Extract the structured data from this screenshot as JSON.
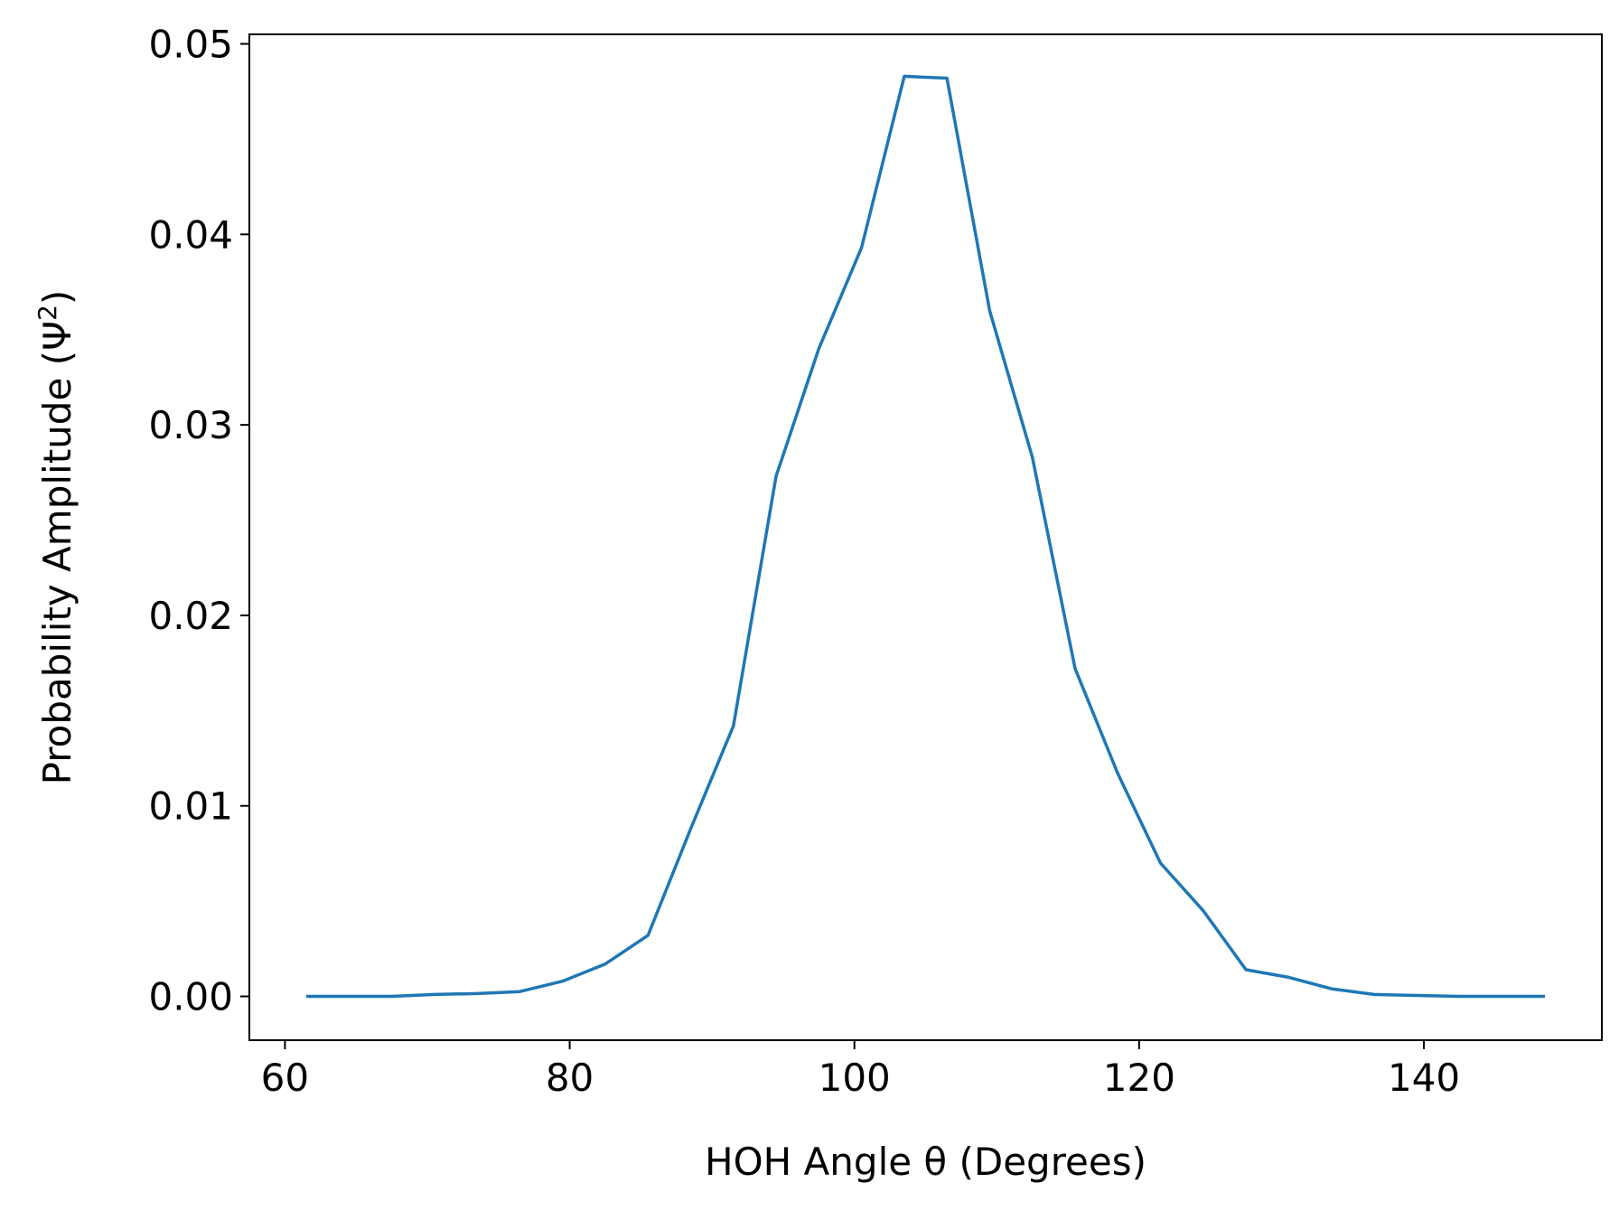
{
  "chart_data": {
    "type": "line",
    "title": "",
    "xlabel": "HOH Angle θ (Degrees)",
    "ylabel": {
      "prefix": "Probability Amplitude (Ψ",
      "superscript": "2",
      "suffix": ")"
    },
    "xlim": [
      57.5,
      152.5
    ],
    "ylim": [
      -0.0023,
      0.0505
    ],
    "xticks": [
      {
        "value": 60,
        "label": "60"
      },
      {
        "value": 80,
        "label": "80"
      },
      {
        "value": 100,
        "label": "100"
      },
      {
        "value": 120,
        "label": "120"
      },
      {
        "value": 140,
        "label": "140"
      }
    ],
    "yticks": [
      {
        "value": 0.0,
        "label": "0.00"
      },
      {
        "value": 0.01,
        "label": "0.01"
      },
      {
        "value": 0.02,
        "label": "0.02"
      },
      {
        "value": 0.03,
        "label": "0.03"
      },
      {
        "value": 0.04,
        "label": "0.04"
      },
      {
        "value": 0.05,
        "label": "0.05"
      }
    ],
    "grid": false,
    "line_color": "#1f77b4",
    "series": [
      {
        "x": [
          61.5,
          64.5,
          67.5,
          70.5,
          73.5,
          76.5,
          79.5,
          82.5,
          85.5,
          88.5,
          91.5,
          94.5,
          97.5,
          100.5,
          103.5,
          106.5,
          109.5,
          112.5,
          115.5,
          118.5,
          121.5,
          124.5,
          127.5,
          130.5,
          133.5,
          136.5,
          139.5,
          142.5,
          145.5,
          148.5
        ],
        "values": [
          0.0,
          0.0,
          0.0,
          0.0001,
          0.00015,
          0.00025,
          0.0008,
          0.0017,
          0.0032,
          0.0088,
          0.0142,
          0.0273,
          0.034,
          0.0393,
          0.0483,
          0.0482,
          0.036,
          0.0283,
          0.0172,
          0.0117,
          0.007,
          0.0045,
          0.0014,
          0.001,
          0.0004,
          0.0001,
          5e-05,
          0.0,
          0.0,
          0.0
        ]
      }
    ]
  }
}
